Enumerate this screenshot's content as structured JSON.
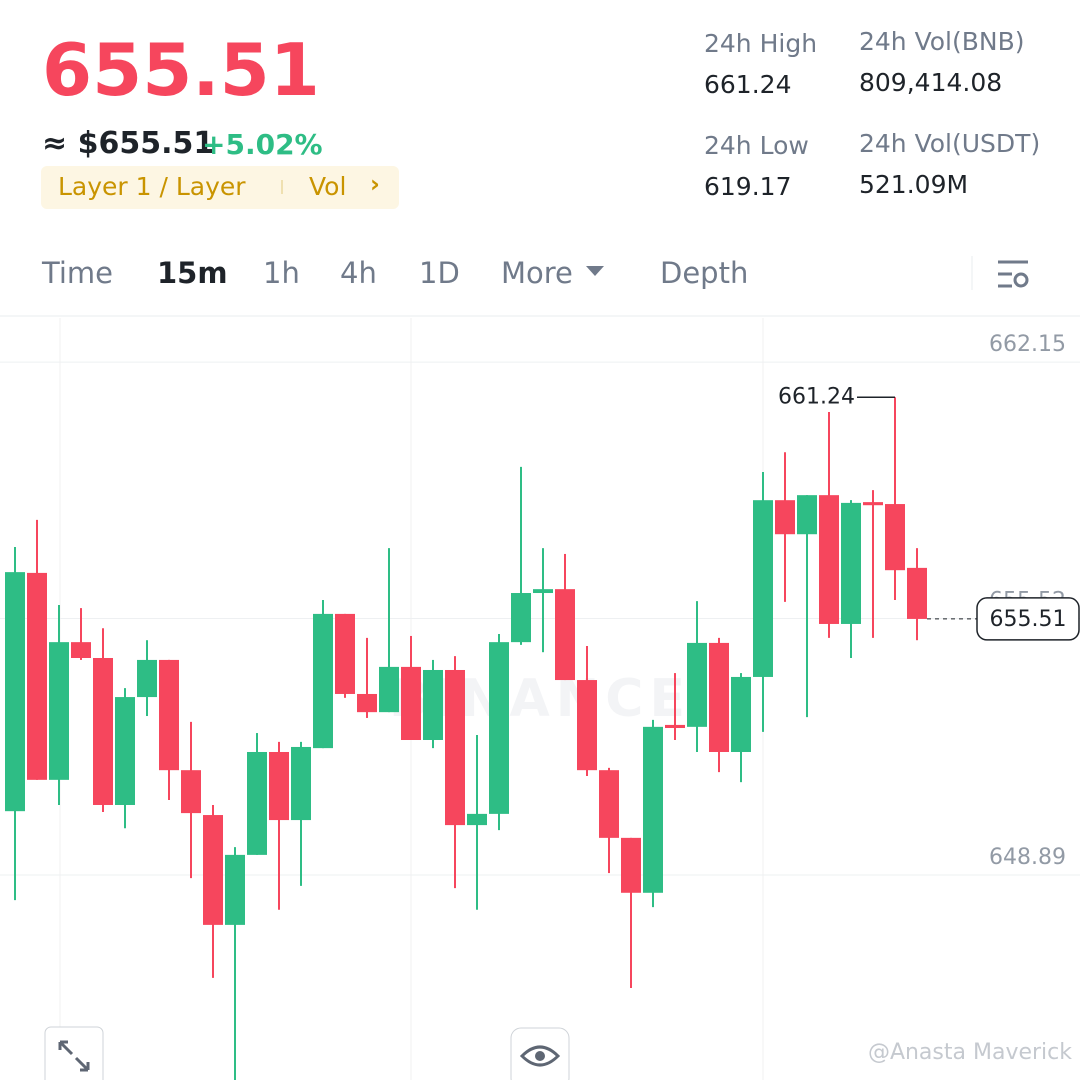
{
  "header": {
    "price": "655.51",
    "fiat_price": "≈ $655.51",
    "change": "+5.02%",
    "tag": "Layer 1 / Layer",
    "tag_action": "Vol",
    "stats": [
      {
        "label": "24h High",
        "value": "661.24"
      },
      {
        "label": "24h Vol(BNB)",
        "value": "809,414.08"
      },
      {
        "label": "24h Low",
        "value": "619.17"
      },
      {
        "label": "24h Vol(USDT)",
        "value": "521.09M"
      }
    ]
  },
  "tabs": [
    "Time",
    "15m",
    "1h",
    "4h",
    "1D",
    "More",
    "Depth"
  ],
  "active_tab": "15m",
  "watermark": "BINANCE",
  "credit": "@Anasta Maverick",
  "chart_data": {
    "type": "candlestick",
    "up_color": "#2ebd85",
    "down_color": "#f6465d",
    "open": [
      650.54,
      656.7,
      651.35,
      654.91,
      654.5,
      650.7,
      653.49,
      654.45,
      651.6,
      650.44,
      647.6,
      649.41,
      652.07,
      650.31,
      652.17,
      655.64,
      653.57,
      653.1,
      654.27,
      652.38,
      654.19,
      650.18,
      650.47,
      654.91,
      656.18,
      656.28,
      653.93,
      651.6,
      649.85,
      648.43,
      652.77,
      652.72,
      654.89,
      652.07,
      654.01,
      658.58,
      657.7,
      658.71,
      655.38,
      658.53,
      658.48,
      656.83
    ],
    "high": [
      657.37,
      658.07,
      655.87,
      655.79,
      655.27,
      653.72,
      654.96,
      654.45,
      652.85,
      650.7,
      649.61,
      652.56,
      652.33,
      652.33,
      656.0,
      655.64,
      655.02,
      657.34,
      655.07,
      654.45,
      654.55,
      652.51,
      655.12,
      659.44,
      657.34,
      657.19,
      654.81,
      651.66,
      649.85,
      652.9,
      654.11,
      655.97,
      655.02,
      654.11,
      659.31,
      659.82,
      658.71,
      660.86,
      658.58,
      658.84,
      661.24,
      657.34
    ],
    "low": [
      648.24,
      651.35,
      650.7,
      654.45,
      650.52,
      650.1,
      653.0,
      650.83,
      648.81,
      646.23,
      643.59,
      649.41,
      647.99,
      648.61,
      652.17,
      653.47,
      652.95,
      653.1,
      652.38,
      652.17,
      648.55,
      647.99,
      650.05,
      654.84,
      654.65,
      653.93,
      651.45,
      648.94,
      645.97,
      648.06,
      652.38,
      652.07,
      651.55,
      651.29,
      652.59,
      655.95,
      652.97,
      655.02,
      654.5,
      655.02,
      656.0,
      654.96
    ],
    "close": [
      656.72,
      651.35,
      654.91,
      654.5,
      650.7,
      653.49,
      654.45,
      651.6,
      650.49,
      647.6,
      649.41,
      652.07,
      650.31,
      652.2,
      655.64,
      653.57,
      653.1,
      654.27,
      652.38,
      654.19,
      650.18,
      650.47,
      654.91,
      656.18,
      656.28,
      653.93,
      651.6,
      649.85,
      648.43,
      652.72,
      652.69,
      654.89,
      652.07,
      654.01,
      658.58,
      657.7,
      658.71,
      655.38,
      658.51,
      658.45,
      656.77,
      655.51
    ],
    "ylim": [
      643.59,
      663.29
    ],
    "yticks": [
      648.89,
      655.52,
      662.15
    ],
    "grid": true
  }
}
